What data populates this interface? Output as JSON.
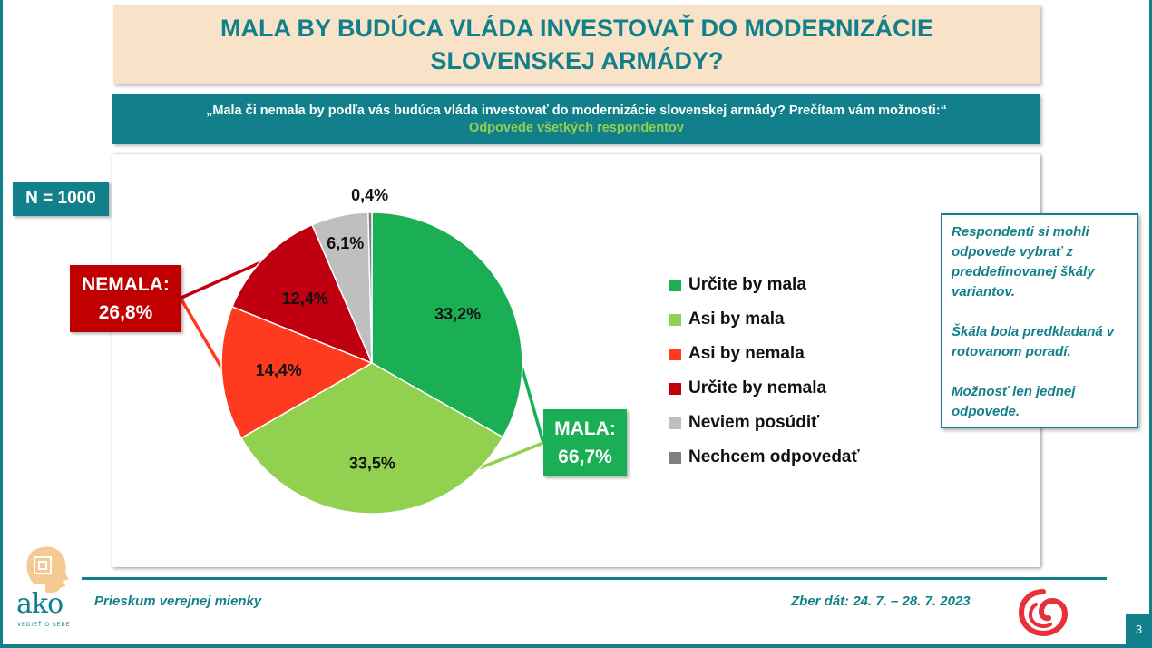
{
  "header": {
    "title": "MALA BY BUDÚCA VLÁDA INVESTOVAŤ DO MODERNIZÁCIE SLOVENSKEJ ARMÁDY?",
    "question": "„Mala či nemala by podľa vás budúca vláda investovať do modernizácie slovenskej armády? Prečítam vám možnosti:“",
    "subtitle": "Odpovede všetkých respondentov"
  },
  "sample": "N = 1000",
  "callouts": {
    "nemala": {
      "label": "NEMALA:",
      "value": "26,8%",
      "color": "#c00000"
    },
    "mala": {
      "label": "MALA:",
      "value": "66,7%",
      "color": "#1aaf54"
    }
  },
  "note": {
    "p1": "Respondenti si mohli odpovede vybrať z preddefinovanej škály variantov.",
    "p2": "Škála bola predkladaná v rotovanom poradí.",
    "p3": "Možnosť len jednej odpovede."
  },
  "footer": {
    "left": "Prieskum verejnej mienky",
    "right": "Zber dát: 24. 7. – 28. 7. 2023",
    "page": "3",
    "logo_text": "ako",
    "logo_tagline": "VEDIEŤ O SEBE"
  },
  "chart_data": {
    "type": "pie",
    "categories": [
      "Určite by mala",
      "Asi by mala",
      "Asi by nemala",
      "Určite by nemala",
      "Neviem posúdiť",
      "Nechcem odpovedať"
    ],
    "values": [
      33.2,
      33.5,
      14.4,
      12.4,
      6.1,
      0.4
    ],
    "labels": [
      "33,2%",
      "33,5%",
      "14,4%",
      "12,4%",
      "6,1%",
      "0,4%"
    ],
    "colors": [
      "#1aaf54",
      "#92d050",
      "#ff3b1f",
      "#c00010",
      "#bfbfbf",
      "#7f7f7f"
    ],
    "legend_position": "right"
  }
}
